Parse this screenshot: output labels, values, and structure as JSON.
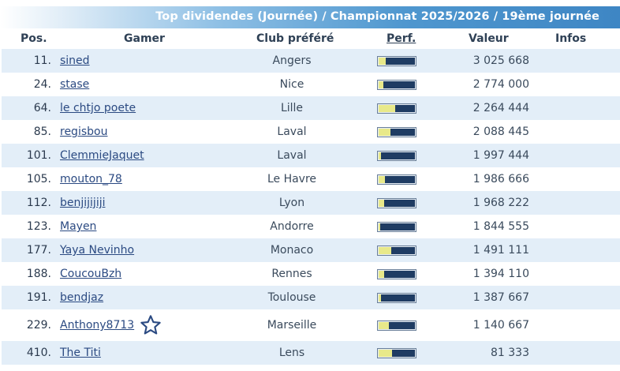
{
  "title": "Top dividendes (Journée) / Championnat 2025/2026 / 19ème journée",
  "columns": {
    "pos": "Pos.",
    "gamer": "Gamer",
    "club": "Club préféré",
    "perf": "Perf.",
    "valeur": "Valeur",
    "infos": "Infos"
  },
  "colors": {
    "header_gradient_end": "#3e86c4",
    "row_alt": "#e3eef8",
    "link": "#2b4a82",
    "perf_bar": "#1f3c63",
    "perf_fill": "#e8e98a"
  },
  "rows": [
    {
      "pos": "11.",
      "gamer": "sined",
      "club": "Angers",
      "perf": 0.2,
      "valeur": "3 025 668"
    },
    {
      "pos": "24.",
      "gamer": "stase",
      "club": "Nice",
      "perf": 0.13,
      "valeur": "2 774 000"
    },
    {
      "pos": "64.",
      "gamer": "le chtjo poete",
      "club": "Lille",
      "perf": 0.45,
      "valeur": "2 264 444"
    },
    {
      "pos": "85.",
      "gamer": "regisbou",
      "club": "Laval",
      "perf": 0.33,
      "valeur": "2 088 445"
    },
    {
      "pos": "101.",
      "gamer": "ClemmieJaquet",
      "club": "Laval",
      "perf": 0.07,
      "valeur": "1 997 444"
    },
    {
      "pos": "105.",
      "gamer": "mouton_78",
      "club": "Le Havre",
      "perf": 0.17,
      "valeur": "1 986 666"
    },
    {
      "pos": "112.",
      "gamer": "benjijijiji",
      "club": "Lyon",
      "perf": 0.15,
      "valeur": "1 968 222"
    },
    {
      "pos": "123.",
      "gamer": "Mayen",
      "club": "Andorre",
      "perf": 0.05,
      "valeur": "1 844 555"
    },
    {
      "pos": "177.",
      "gamer": "Yaya Nevinho",
      "club": "Monaco",
      "perf": 0.35,
      "valeur": "1 491 111"
    },
    {
      "pos": "188.",
      "gamer": "CoucouBzh",
      "club": "Rennes",
      "perf": 0.15,
      "valeur": "1 394 110"
    },
    {
      "pos": "191.",
      "gamer": "bendjaz",
      "club": "Toulouse",
      "perf": 0.07,
      "valeur": "1 387 667"
    },
    {
      "pos": "229.",
      "gamer": "Anthony8713",
      "club": "Marseille",
      "perf": 0.28,
      "valeur": "1 140 667",
      "star": "star-outline-icon"
    },
    {
      "pos": "410.",
      "gamer": "The Titi",
      "club": "Lens",
      "perf": 0.38,
      "valeur": "81 333"
    }
  ]
}
